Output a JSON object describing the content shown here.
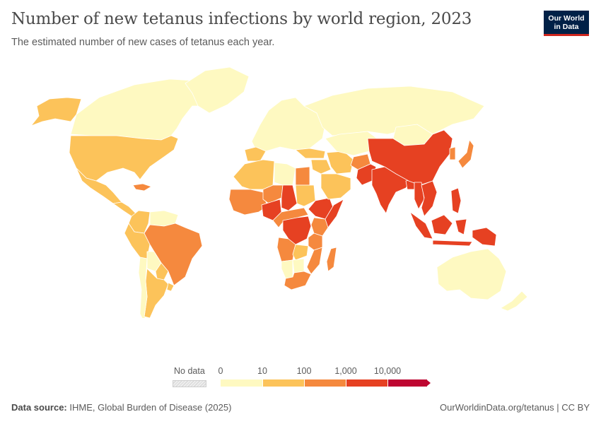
{
  "header": {
    "title": "Number of new tetanus infections by world region, 2023",
    "subtitle": "The estimated number of new cases of tetanus each year."
  },
  "logo": {
    "line1": "Our World",
    "line2": "in Data"
  },
  "legend": {
    "no_data_label": "No data",
    "ticks": [
      "0",
      "10",
      "100",
      "1,000",
      "10,000"
    ],
    "bins": [
      {
        "range": "0–10",
        "color": "#fef9c1"
      },
      {
        "range": "10–100",
        "color": "#fcc35a"
      },
      {
        "range": "100–1,000",
        "color": "#f5893e"
      },
      {
        "range": "1,000–10,000",
        "color": "#e64122"
      },
      {
        "range": ">10,000",
        "color": "#be0631"
      }
    ]
  },
  "footer": {
    "source_label": "Data source:",
    "source_text": "IHME, Global Burden of Disease (2025)",
    "credit": "OurWorldinData.org/tetanus | CC BY"
  },
  "map_regions": [
    {
      "name": "Canada",
      "bin": 0
    },
    {
      "name": "Alaska",
      "bin": 1
    },
    {
      "name": "Greenland",
      "bin": 0
    },
    {
      "name": "United States",
      "bin": 1
    },
    {
      "name": "Mexico",
      "bin": 1
    },
    {
      "name": "Central America",
      "bin": 1
    },
    {
      "name": "Caribbean",
      "bin": 2
    },
    {
      "name": "Colombia",
      "bin": 1
    },
    {
      "name": "Venezuela",
      "bin": 0
    },
    {
      "name": "Peru",
      "bin": 1
    },
    {
      "name": "Brazil",
      "bin": 2
    },
    {
      "name": "Bolivia",
      "bin": 0
    },
    {
      "name": "Paraguay",
      "bin": 1
    },
    {
      "name": "Argentina",
      "bin": 1
    },
    {
      "name": "Chile",
      "bin": 0
    },
    {
      "name": "Uruguay",
      "bin": 1
    },
    {
      "name": "Europe",
      "bin": 0
    },
    {
      "name": "Iberia",
      "bin": 1
    },
    {
      "name": "Russia",
      "bin": 0
    },
    {
      "name": "Turkey",
      "bin": 1
    },
    {
      "name": "Middle East",
      "bin": 1
    },
    {
      "name": "Iran",
      "bin": 1
    },
    {
      "name": "Central Asia",
      "bin": 0
    },
    {
      "name": "Afghanistan",
      "bin": 2
    },
    {
      "name": "Pakistan",
      "bin": 3
    },
    {
      "name": "India",
      "bin": 3
    },
    {
      "name": "Bangladesh",
      "bin": 3
    },
    {
      "name": "Mongolia",
      "bin": 0
    },
    {
      "name": "China",
      "bin": 3
    },
    {
      "name": "Korea",
      "bin": 2
    },
    {
      "name": "Japan",
      "bin": 2
    },
    {
      "name": "Myanmar",
      "bin": 3
    },
    {
      "name": "Mainland Southeast Asia",
      "bin": 3
    },
    {
      "name": "Philippines",
      "bin": 3
    },
    {
      "name": "Indonesia",
      "bin": 3
    },
    {
      "name": "Papua New Guinea",
      "bin": 3
    },
    {
      "name": "Australia",
      "bin": 0
    },
    {
      "name": "New Zealand",
      "bin": 0
    },
    {
      "name": "North Africa",
      "bin": 1
    },
    {
      "name": "Libya",
      "bin": 0
    },
    {
      "name": "Egypt",
      "bin": 2
    },
    {
      "name": "West Africa",
      "bin": 2
    },
    {
      "name": "Niger",
      "bin": 2
    },
    {
      "name": "Nigeria",
      "bin": 3
    },
    {
      "name": "Chad",
      "bin": 3
    },
    {
      "name": "Sudan",
      "bin": 1
    },
    {
      "name": "Ethiopia",
      "bin": 3
    },
    {
      "name": "Somalia",
      "bin": 3
    },
    {
      "name": "Kenya",
      "bin": 2
    },
    {
      "name": "Central Africa",
      "bin": 2
    },
    {
      "name": "DR Congo",
      "bin": 3
    },
    {
      "name": "Tanzania",
      "bin": 2
    },
    {
      "name": "Angola",
      "bin": 2
    },
    {
      "name": "Zambia",
      "bin": 1
    },
    {
      "name": "Mozambique",
      "bin": 2
    },
    {
      "name": "Namibia",
      "bin": 0
    },
    {
      "name": "Botswana",
      "bin": 0
    },
    {
      "name": "South Africa",
      "bin": 2
    },
    {
      "name": "Madagascar",
      "bin": 2
    },
    {
      "name": "Arabian Peninsula",
      "bin": 1
    }
  ]
}
